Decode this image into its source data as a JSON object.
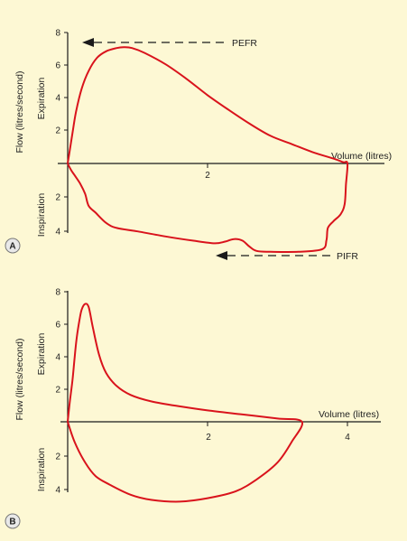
{
  "figure": {
    "background": "#fdf8d4",
    "curve_color": "#d9131c",
    "axis_color": "#1a1a1a",
    "badge_fill": "#e9e9e9"
  },
  "panel_a": {
    "label": "A",
    "ylabel": "Flow (litres/second)",
    "expiration_label": "Expiration",
    "inspiration_label": "Inspiration",
    "xlabel": "Volume (litres)",
    "pefr_label": "PEFR",
    "pifr_label": "PIFR"
  },
  "panel_b": {
    "label": "B",
    "ylabel": "Flow (litres/second)",
    "expiration_label": "Expiration",
    "inspiration_label": "Inspiration",
    "xlabel": "Volume (litres)"
  },
  "chart_data": [
    {
      "type": "line",
      "panel": "A",
      "xlabel": "Volume (litres)",
      "ylabel": "Flow (litres/second)",
      "x_ticks": [
        "2"
      ],
      "y_ticks_expiration": [
        "8",
        "6",
        "4",
        "2"
      ],
      "y_ticks_inspiration": [
        "2",
        "4"
      ],
      "xlim": [
        0,
        4.4
      ],
      "ylim": [
        -4.1,
        8.2
      ],
      "annotations": [
        {
          "text": "PEFR",
          "flow": 7.2,
          "arrow": "points left toward flow axis"
        },
        {
          "text": "PIFR",
          "flow": -5.4,
          "arrow": "points left toward curve"
        }
      ],
      "series": [
        {
          "expiration": [
            [
              0,
              0
            ],
            [
              0.03,
              0.8
            ],
            [
              0.07,
              1.9
            ],
            [
              0.12,
              3.2
            ],
            [
              0.2,
              4.6
            ],
            [
              0.3,
              5.7
            ],
            [
              0.42,
              6.5
            ],
            [
              0.55,
              6.9
            ],
            [
              0.7,
              7.1
            ],
            [
              0.8,
              7.15
            ],
            [
              0.92,
              7.1
            ],
            [
              1.1,
              6.8
            ],
            [
              1.4,
              6.1
            ],
            [
              1.7,
              5.2
            ],
            [
              2.0,
              4.2
            ],
            [
              2.3,
              3.3
            ],
            [
              2.6,
              2.45
            ],
            [
              2.9,
              1.7
            ],
            [
              3.2,
              1.2
            ],
            [
              3.5,
              0.7
            ],
            [
              3.8,
              0.3
            ],
            [
              3.94,
              0.08
            ],
            [
              4.0,
              0
            ]
          ],
          "inspiration": [
            [
              4.0,
              0
            ],
            [
              3.98,
              -1.2
            ],
            [
              3.96,
              -2.4
            ],
            [
              3.9,
              -3.0
            ],
            [
              3.8,
              -3.4
            ],
            [
              3.72,
              -3.8
            ],
            [
              3.7,
              -4.5
            ],
            [
              3.64,
              -5.05
            ],
            [
              3.3,
              -5.2
            ],
            [
              2.9,
              -5.2
            ],
            [
              2.7,
              -5.15
            ],
            [
              2.6,
              -4.9
            ],
            [
              2.5,
              -4.55
            ],
            [
              2.38,
              -4.45
            ],
            [
              2.25,
              -4.6
            ],
            [
              2.1,
              -4.7
            ],
            [
              1.8,
              -4.55
            ],
            [
              1.4,
              -4.3
            ],
            [
              1.0,
              -4.0
            ],
            [
              0.7,
              -3.8
            ],
            [
              0.55,
              -3.5
            ],
            [
              0.4,
              -2.9
            ],
            [
              0.3,
              -2.5
            ],
            [
              0.25,
              -1.8
            ],
            [
              0.18,
              -1.2
            ],
            [
              0.1,
              -0.7
            ],
            [
              0.05,
              -0.4
            ],
            [
              0,
              0
            ]
          ]
        }
      ]
    },
    {
      "type": "line",
      "panel": "B",
      "xlabel": "Volume (litres)",
      "ylabel": "Flow (litres/second)",
      "x_ticks": [
        "2",
        "4"
      ],
      "y_ticks_expiration": [
        "8",
        "6",
        "4",
        "2"
      ],
      "y_ticks_inspiration": [
        "2",
        "4"
      ],
      "xlim": [
        0,
        4.4
      ],
      "ylim": [
        -4.2,
        8.2
      ],
      "series": [
        {
          "expiration": [
            [
              0,
              0
            ],
            [
              0.03,
              1.2
            ],
            [
              0.07,
              2.6
            ],
            [
              0.1,
              4.0
            ],
            [
              0.13,
              5.2
            ],
            [
              0.17,
              6.3
            ],
            [
              0.2,
              6.9
            ],
            [
              0.25,
              7.25
            ],
            [
              0.3,
              7.05
            ],
            [
              0.36,
              5.8
            ],
            [
              0.45,
              4.1
            ],
            [
              0.55,
              3.0
            ],
            [
              0.7,
              2.2
            ],
            [
              0.9,
              1.65
            ],
            [
              1.2,
              1.25
            ],
            [
              1.6,
              0.95
            ],
            [
              2.0,
              0.7
            ],
            [
              2.5,
              0.45
            ],
            [
              3.0,
              0.2
            ],
            [
              3.35,
              0
            ]
          ],
          "inspiration": [
            [
              3.35,
              0
            ],
            [
              3.2,
              -1.2
            ],
            [
              3.0,
              -2.4
            ],
            [
              2.7,
              -3.4
            ],
            [
              2.4,
              -4.1
            ],
            [
              2.0,
              -4.5
            ],
            [
              1.6,
              -4.7
            ],
            [
              1.2,
              -4.6
            ],
            [
              0.9,
              -4.3
            ],
            [
              0.6,
              -3.7
            ],
            [
              0.4,
              -3.2
            ],
            [
              0.25,
              -2.4
            ],
            [
              0.1,
              -1.2
            ],
            [
              0,
              0
            ]
          ]
        }
      ]
    }
  ]
}
